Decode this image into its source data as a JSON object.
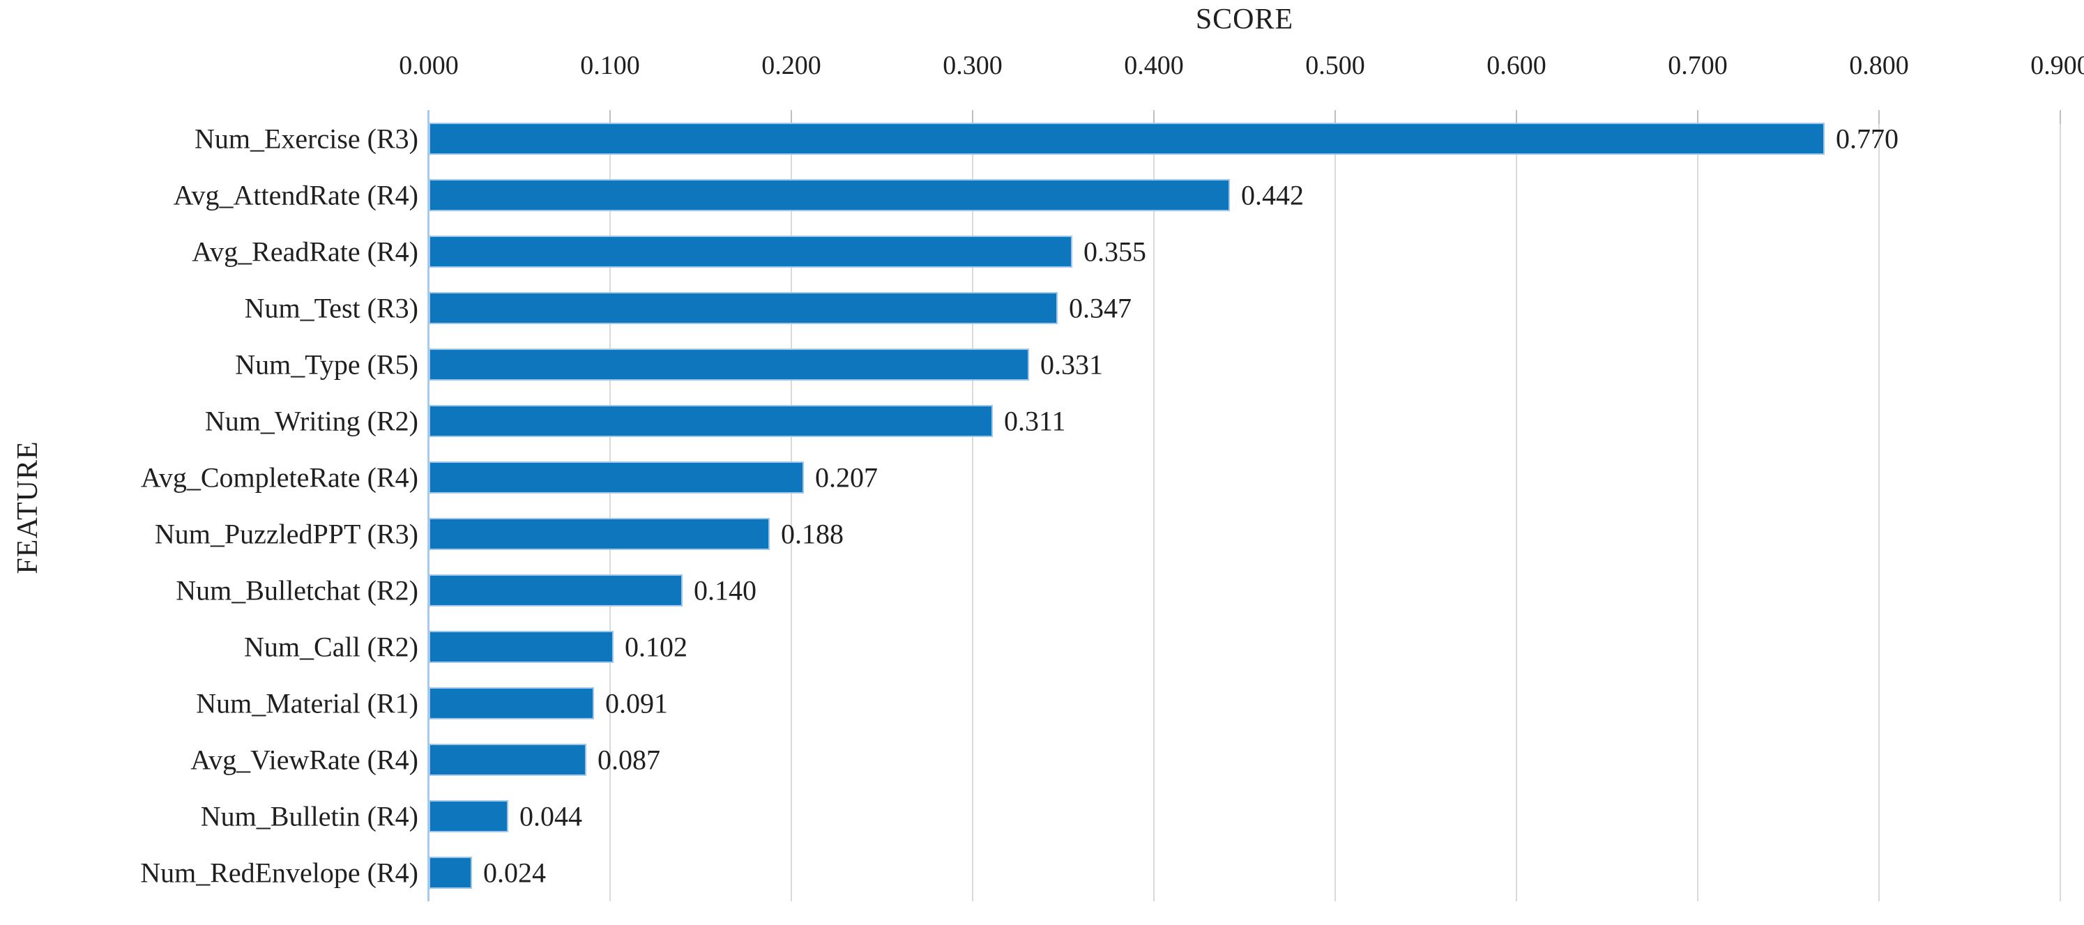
{
  "chart_data": {
    "type": "bar",
    "orientation": "horizontal",
    "xlabel": "SCORE",
    "ylabel": "FEATURE",
    "categories": [
      "Num_Exercise (R3)",
      "Avg_AttendRate (R4)",
      "Avg_ReadRate (R4)",
      "Num_Test (R3)",
      "Num_Type (R5)",
      "Num_Writing (R2)",
      "Avg_CompleteRate (R4)",
      "Num_PuzzledPPT (R3)",
      "Num_Bulletchat (R2)",
      "Num_Call (R2)",
      "Num_Material (R1)",
      "Avg_ViewRate (R4)",
      "Num_Bulletin (R4)",
      "Num_RedEnvelope (R4)"
    ],
    "values": [
      0.77,
      0.442,
      0.355,
      0.347,
      0.331,
      0.311,
      0.207,
      0.188,
      0.14,
      0.102,
      0.091,
      0.087,
      0.044,
      0.024
    ],
    "data_labels": [
      "0.770",
      "0.442",
      "0.355",
      "0.347",
      "0.331",
      "0.311",
      "0.207",
      "0.188",
      "0.140",
      "0.102",
      "0.091",
      "0.087",
      "0.044",
      "0.024"
    ],
    "x_tick_labels": [
      "0.000",
      "0.100",
      "0.200",
      "0.300",
      "0.400",
      "0.500",
      "0.600",
      "0.700",
      "0.800",
      "0.900"
    ],
    "xlim": [
      0,
      0.9
    ],
    "grid": "vertical-on",
    "legend": "none",
    "colors": {
      "bar_fill": "#0e76bd",
      "bar_edge": "#9cc7ea",
      "gridline": "#d9d9d9",
      "tick": "#bfbfbf",
      "axis_line": "#a5cbee",
      "text": "#1f1f1f"
    }
  }
}
